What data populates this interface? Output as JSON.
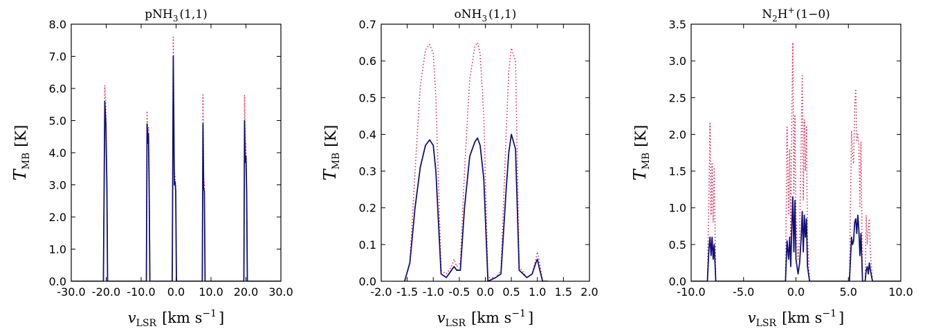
{
  "chart_data": [
    {
      "type": "line",
      "title_parts": {
        "base": "pNH",
        "sub": "3",
        "sup": "",
        "rest": "(1,1)"
      },
      "xlabel_parts": {
        "base": "v",
        "sub": "LSR",
        "unit_pre": "[km s",
        "unit_sup": "−1",
        "unit_post": "]"
      },
      "ylabel_parts": {
        "base": "T",
        "sub": "MB",
        "unit": "[K]"
      },
      "xlim": [
        -30,
        30
      ],
      "ylim": [
        0,
        8
      ],
      "xticks": [
        -30,
        -20,
        -10,
        0,
        10,
        20,
        30
      ],
      "yticks": [
        0,
        1,
        2,
        3,
        4,
        5,
        6,
        7,
        8
      ],
      "xtick_labels": [
        "-30.0",
        "-20.0",
        "-10.0",
        "0.0",
        "10.0",
        "20.0",
        "30.0"
      ],
      "ytick_labels": [
        "0.0",
        "1.0",
        "2.0",
        "3.0",
        "4.0",
        "5.0",
        "6.0",
        "7.0",
        "8.0"
      ],
      "series": [
        {
          "role": "model",
          "color": "#e8194a",
          "style": "dotted",
          "x": [
            -30,
            -20.8,
            -20.4,
            -20.1,
            -19.8,
            -19.6,
            -19.4,
            -8.5,
            -8.3,
            -8.1,
            -7.9,
            -7.7,
            -7.5,
            -7.3,
            -1.1,
            -0.8,
            -0.5,
            -0.3,
            -0.1,
            0.1,
            0.3,
            7.5,
            7.7,
            7.9,
            8.1,
            8.3,
            19.4,
            19.6,
            19.8,
            20.0,
            20.2,
            20.4,
            30
          ],
          "y": [
            0,
            0,
            6.1,
            5.4,
            3.2,
            0,
            0,
            0,
            5.3,
            4.6,
            4.8,
            3.5,
            0,
            0,
            0,
            7.6,
            3.4,
            3.3,
            3.0,
            0,
            0,
            0,
            5.8,
            3.2,
            3.0,
            0,
            0,
            5.8,
            4.4,
            4.3,
            3.0,
            0,
            0
          ]
        },
        {
          "role": "observed",
          "color": "#101078",
          "style": "solid",
          "x": [
            -30,
            -20.8,
            -20.4,
            -20.1,
            -19.8,
            -19.6,
            -19.4,
            -8.5,
            -8.3,
            -8.1,
            -7.9,
            -7.7,
            -7.5,
            -7.3,
            -1.1,
            -0.8,
            -0.5,
            -0.3,
            -0.1,
            0.1,
            0.3,
            7.5,
            7.7,
            7.9,
            8.1,
            8.3,
            19.4,
            19.6,
            19.8,
            20.0,
            20.2,
            20.4,
            30
          ],
          "y": [
            0,
            0,
            5.6,
            4.9,
            2.9,
            0,
            0,
            0,
            4.9,
            4.3,
            4.6,
            2.8,
            0,
            0,
            0,
            7.0,
            3.0,
            3.1,
            2.8,
            0,
            0,
            0,
            4.9,
            2.9,
            2.8,
            0,
            0,
            5.0,
            3.7,
            3.9,
            2.8,
            0,
            0
          ]
        }
      ]
    },
    {
      "type": "line",
      "title_parts": {
        "base": "oNH",
        "sub": "3",
        "sup": "",
        "rest": "(1,1)"
      },
      "xlabel_parts": {
        "base": "v",
        "sub": "LSR",
        "unit_pre": "[km s",
        "unit_sup": "−1",
        "unit_post": "]"
      },
      "ylabel_parts": {
        "base": "T",
        "sub": "MB",
        "unit": "[K]"
      },
      "xlim": [
        -2,
        2
      ],
      "ylim": [
        0,
        0.7
      ],
      "xticks": [
        -2,
        -1.5,
        -1,
        -0.5,
        0,
        0.5,
        1,
        1.5,
        2
      ],
      "yticks": [
        0,
        0.1,
        0.2,
        0.3,
        0.4,
        0.5,
        0.6,
        0.7
      ],
      "xtick_labels": [
        "-2.0",
        "-1.5",
        "-1.0",
        "-0.5",
        "0.0",
        "0.5",
        "1.0",
        "1.5",
        "2.0"
      ],
      "ytick_labels": [
        "0.0",
        "0.1",
        "0.2",
        "0.3",
        "0.4",
        "0.5",
        "0.6",
        "0.7"
      ],
      "series": [
        {
          "role": "model",
          "color": "#e8194a",
          "style": "dotted",
          "x": [
            -1.55,
            -1.45,
            -1.35,
            -1.25,
            -1.15,
            -1.07,
            -1.0,
            -0.95,
            -0.85,
            -0.75,
            -0.65,
            -0.6,
            -0.55,
            -0.48,
            -0.4,
            -0.3,
            -0.2,
            -0.15,
            -0.1,
            -0.03,
            0.05,
            0.2,
            0.3,
            0.4,
            0.45,
            0.5,
            0.58,
            0.65,
            0.8,
            0.9,
            0.97,
            1.0,
            1.03,
            1.1,
            1.2
          ],
          "y": [
            0.0,
            0.05,
            0.3,
            0.53,
            0.63,
            0.645,
            0.62,
            0.5,
            0.03,
            0.02,
            0.04,
            0.06,
            0.04,
            0.05,
            0.3,
            0.55,
            0.64,
            0.65,
            0.62,
            0.45,
            0.01,
            0.01,
            0.03,
            0.4,
            0.57,
            0.635,
            0.6,
            0.04,
            0.01,
            0.02,
            0.06,
            0.08,
            0.06,
            0.0,
            0.0
          ]
        },
        {
          "role": "observed",
          "color": "#101078",
          "style": "solid",
          "x": [
            -1.55,
            -1.45,
            -1.35,
            -1.25,
            -1.15,
            -1.07,
            -1.0,
            -0.95,
            -0.85,
            -0.75,
            -0.65,
            -0.6,
            -0.55,
            -0.48,
            -0.4,
            -0.3,
            -0.2,
            -0.15,
            -0.1,
            -0.03,
            0.05,
            0.2,
            0.3,
            0.4,
            0.45,
            0.5,
            0.58,
            0.65,
            0.8,
            0.9,
            0.97,
            1.0,
            1.03,
            1.1,
            1.2
          ],
          "y": [
            0.0,
            0.05,
            0.2,
            0.31,
            0.37,
            0.385,
            0.37,
            0.3,
            0.02,
            0.01,
            0.03,
            0.04,
            0.03,
            0.03,
            0.2,
            0.34,
            0.38,
            0.39,
            0.37,
            0.28,
            0.0,
            0.01,
            0.02,
            0.25,
            0.35,
            0.4,
            0.36,
            0.03,
            0.01,
            0.02,
            0.05,
            0.06,
            0.04,
            0.0,
            0.0
          ]
        }
      ]
    },
    {
      "type": "line",
      "title_parts": {
        "base": "N",
        "sub": "2",
        "sup": "+",
        "base2": "H",
        "rest": "(1−0)"
      },
      "xlabel_parts": {
        "base": "v",
        "sub": "LSR",
        "unit_pre": "[km s",
        "unit_sup": "−1",
        "unit_post": "]"
      },
      "ylabel_parts": {
        "base": "T",
        "sub": "MB",
        "unit": "[K]"
      },
      "xlim": [
        -10,
        10
      ],
      "ylim": [
        0,
        3.5
      ],
      "xticks": [
        -10,
        -5,
        0,
        5,
        10
      ],
      "yticks": [
        0,
        0.5,
        1,
        1.5,
        2,
        2.5,
        3,
        3.5
      ],
      "xtick_labels": [
        "-10.0",
        "-5.0",
        "0.0",
        "5.0",
        "10.0"
      ],
      "ytick_labels": [
        "0.0",
        "0.5",
        "1.0",
        "1.5",
        "2.0",
        "2.5",
        "3.0",
        "3.5"
      ],
      "series": [
        {
          "role": "model",
          "color": "#e8194a",
          "style": "dotted",
          "x": [
            -10,
            -8.45,
            -8.3,
            -8.2,
            -8.1,
            -8.0,
            -7.9,
            -7.8,
            -7.65,
            -1.0,
            -0.85,
            -0.7,
            -0.6,
            -0.5,
            -0.4,
            -0.3,
            -0.2,
            -0.1,
            0.0,
            0.1,
            0.2,
            0.35,
            0.5,
            0.6,
            0.7,
            0.8,
            0.9,
            1.0,
            1.1,
            1.3,
            5.1,
            5.3,
            5.4,
            5.5,
            5.6,
            5.7,
            5.8,
            5.9,
            6.0,
            6.1,
            6.2,
            6.35,
            6.6,
            6.7,
            6.8,
            6.9,
            7.0,
            7.1,
            7.3,
            10
          ],
          "y": [
            0,
            0,
            1.2,
            2.15,
            0.9,
            1.6,
            0.8,
            1.55,
            0,
            0,
            2.1,
            0.9,
            1.8,
            0.6,
            2.2,
            3.25,
            1.2,
            2.25,
            0.9,
            0.5,
            0.3,
            0.6,
            2.0,
            2.8,
            1.1,
            2.2,
            1.5,
            2.1,
            0.6,
            0,
            0,
            2.05,
            1.7,
            1.6,
            2.4,
            2.62,
            1.9,
            2.0,
            1.85,
            1.0,
            1.9,
            0,
            0,
            0.9,
            0.5,
            0.7,
            0.85,
            0.4,
            0,
            0
          ]
        },
        {
          "role": "observed",
          "color": "#101078",
          "style": "solid",
          "x": [
            -10,
            -8.45,
            -8.3,
            -8.2,
            -8.1,
            -8.0,
            -7.9,
            -7.8,
            -7.65,
            -1.0,
            -0.85,
            -0.7,
            -0.6,
            -0.5,
            -0.4,
            -0.3,
            -0.2,
            -0.1,
            0.0,
            0.1,
            0.2,
            0.35,
            0.5,
            0.6,
            0.7,
            0.8,
            0.9,
            1.0,
            1.1,
            1.3,
            5.1,
            5.3,
            5.4,
            5.5,
            5.6,
            5.7,
            5.8,
            5.9,
            6.0,
            6.1,
            6.2,
            6.35,
            6.6,
            6.7,
            6.8,
            6.9,
            7.0,
            7.1,
            7.3,
            10
          ],
          "y": [
            0,
            0,
            0.45,
            0.6,
            0.35,
            0.6,
            0.3,
            0.5,
            0,
            0,
            0.55,
            0.3,
            0.6,
            0.2,
            0.7,
            1.15,
            0.4,
            1.1,
            0.3,
            0.2,
            0.1,
            0.25,
            0.6,
            0.95,
            0.4,
            0.9,
            0.6,
            0.85,
            0.2,
            0,
            0,
            0.6,
            0.5,
            0.55,
            0.8,
            0.85,
            0.65,
            0.9,
            0.7,
            0.35,
            0.65,
            0,
            0,
            0.15,
            0.2,
            0.1,
            0.25,
            0.15,
            0,
            0
          ]
        }
      ]
    }
  ]
}
